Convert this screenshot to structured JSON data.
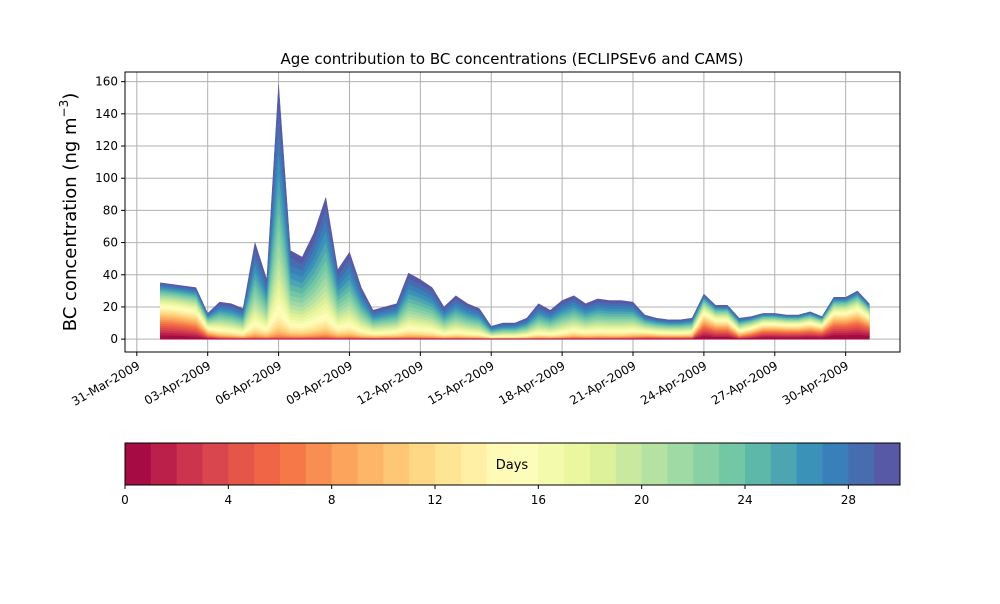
{
  "chart_data": {
    "type": "area",
    "title": "Age contribution to BC concentrations (ECLIPSEv6 and CAMS)",
    "ylabel": "BC concentration (ng m",
    "ylabel_sup": "−3",
    "ylabel_close": ")",
    "xlabel": "",
    "ylim": [
      -8,
      166
    ],
    "yticks": [
      0,
      20,
      40,
      60,
      80,
      100,
      120,
      140,
      160
    ],
    "xlim_days_from_31mar": [
      -0.5,
      32.3
    ],
    "xtick_labels": [
      "31-Mar-2009",
      "03-Apr-2009",
      "06-Apr-2009",
      "09-Apr-2009",
      "12-Apr-2009",
      "15-Apr-2009",
      "18-Apr-2009",
      "21-Apr-2009",
      "24-Apr-2009",
      "27-Apr-2009",
      "30-Apr-2009"
    ],
    "xtick_step_days": 3,
    "grid": true,
    "time_start": "01-Apr-2009 00:00",
    "time_step_hours": 12,
    "total": [
      35,
      34,
      33,
      32,
      16,
      23,
      22,
      19,
      60,
      37,
      158,
      55,
      51,
      66,
      88,
      43,
      54,
      32,
      18,
      20,
      22,
      41,
      37,
      32,
      20,
      27,
      22,
      19,
      8,
      10,
      10,
      13,
      22,
      18,
      24,
      27,
      22,
      25,
      24,
      24,
      23,
      15,
      13,
      12,
      12,
      13,
      28,
      21,
      21,
      13,
      14,
      16,
      16,
      15,
      15,
      17,
      14,
      26,
      26,
      30,
      22
    ],
    "young_fraction_0_7d": [
      0.3,
      0.3,
      0.28,
      0.25,
      0.15,
      0.05,
      0.04,
      0.03,
      0.02,
      0.02,
      0.01,
      0.02,
      0.02,
      0.02,
      0.02,
      0.02,
      0.02,
      0.02,
      0.03,
      0.03,
      0.03,
      0.02,
      0.02,
      0.02,
      0.02,
      0.02,
      0.02,
      0.02,
      0.02,
      0.02,
      0.02,
      0.02,
      0.02,
      0.02,
      0.02,
      0.03,
      0.03,
      0.03,
      0.03,
      0.03,
      0.04,
      0.08,
      0.08,
      0.08,
      0.08,
      0.08,
      0.3,
      0.28,
      0.28,
      0.12,
      0.2,
      0.3,
      0.3,
      0.3,
      0.3,
      0.3,
      0.3,
      0.35,
      0.35,
      0.35,
      0.35
    ],
    "colorbar": {
      "label": "Days",
      "range": [
        0,
        30
      ],
      "n_colors": 30,
      "tick_labels": [
        "0",
        "4",
        "8",
        "12",
        "16",
        "20",
        "24",
        "28"
      ],
      "ticks": [
        0,
        4,
        8,
        12,
        16,
        20,
        24,
        28
      ],
      "colormap_anchors": [
        "#9e0142",
        "#d53e4f",
        "#f46d43",
        "#fdae61",
        "#fee08b",
        "#ffffbf",
        "#e6f598",
        "#abdda4",
        "#66c2a5",
        "#3288bd",
        "#5e4fa2"
      ]
    }
  }
}
